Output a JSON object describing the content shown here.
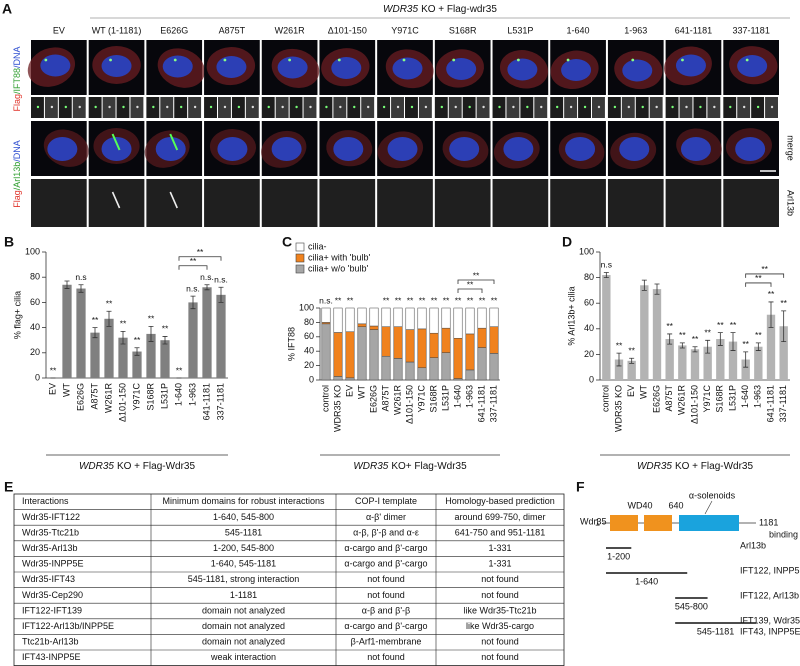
{
  "panel_a": {
    "label": "A",
    "title_gene": "WDR35",
    "title_rest": "KO + Flag-wdr35",
    "columns": [
      "EV",
      "WT (1-1181)",
      "E626G",
      "A875T",
      "W261R",
      "Δ101-150",
      "Y971C",
      "S168R",
      "L531P",
      "1-640",
      "1-963",
      "641-1181",
      "337-1181"
    ],
    "row_labels": [
      [
        "Flag",
        "/IFT88",
        "/DNA"
      ],
      [
        "Flag",
        "/Arl13b",
        "/DNA"
      ]
    ],
    "row_label_colors": [
      "#e0332a",
      "#2f9e2f",
      "#3050d0"
    ],
    "right_labels": [
      "merge",
      "Arl13b"
    ]
  },
  "chart_data": [
    {
      "type": "bar",
      "panel": "B",
      "ylabel": "% flag+ cilia",
      "xlabel_gene": "WDR35",
      "xlabel_rest": "KO + Flag-Wdr35",
      "categories": [
        "EV",
        "WT",
        "E626G",
        "A875T",
        "W261R",
        "Δ101-150",
        "Y971C",
        "S168R",
        "L531P",
        "1-640",
        "1-963",
        "641-1181",
        "337-1181"
      ],
      "values": [
        0,
        74,
        71,
        36,
        47,
        32,
        21,
        35,
        30,
        0,
        60,
        72,
        66
      ],
      "errors": [
        0,
        3,
        3,
        4,
        6,
        5,
        3,
        6,
        3,
        0,
        5,
        2,
        6
      ],
      "annotations": [
        "**",
        null,
        "n.s",
        "**",
        "**",
        "**",
        "**",
        "**",
        "**",
        "**",
        "n.s.",
        "n.s.",
        "n.s."
      ],
      "brackets": [
        {
          "between": [
            "1-640",
            "641-1181"
          ],
          "label": "**"
        },
        {
          "between": [
            "1-640",
            "337-1181"
          ],
          "label": "**"
        }
      ],
      "color": "#808080",
      "ylim": [
        0,
        100
      ],
      "yticks": [
        0,
        20,
        40,
        60,
        80,
        100
      ]
    },
    {
      "type": "stacked_bar",
      "panel": "C",
      "ylabel": "% IFT88",
      "xlabel_gene": "WDR35",
      "xlabel_rest": "KO+ Flag-Wdr35",
      "categories": [
        "control",
        "WDR35 KO",
        "EV",
        "WT",
        "E626G",
        "A875T",
        "W261R",
        "Δ101-150",
        "Y971C",
        "S168R",
        "L531P",
        "1-640",
        "1-963",
        "641-1181",
        "337-1181"
      ],
      "series": [
        {
          "name": "cilia+ w/o 'bulb'",
          "color": "#a6a6a6",
          "values": [
            78,
            5,
            3,
            74,
            70,
            33,
            30,
            25,
            17,
            31,
            38,
            2,
            14,
            45,
            37
          ]
        },
        {
          "name": "cilia+ with 'bulb'",
          "color": "#f0821e",
          "values": [
            2,
            61,
            64,
            4,
            5,
            41,
            44,
            45,
            54,
            34,
            34,
            56,
            50,
            27,
            37
          ]
        },
        {
          "name": "cilia-",
          "color": "#ffffff",
          "values": [
            20,
            34,
            33,
            22,
            25,
            26,
            26,
            30,
            29,
            35,
            28,
            42,
            36,
            28,
            26
          ]
        }
      ],
      "annotations": [
        "n.s.",
        "**",
        "**",
        null,
        null,
        "**",
        "**",
        "**",
        "**",
        "**",
        "**",
        "**",
        "**",
        "**",
        "**"
      ],
      "brackets": [
        {
          "between": [
            "1-640",
            "641-1181"
          ],
          "label": "**"
        },
        {
          "between": [
            "1-640",
            "337-1181"
          ],
          "label": "**"
        }
      ],
      "legend": "top-left",
      "ylim": [
        0,
        100
      ],
      "yticks": [
        0,
        20,
        40,
        60,
        80,
        100
      ]
    },
    {
      "type": "bar",
      "panel": "D",
      "ylabel": "% Arl13b+ cilia",
      "xlabel_gene": "WDR35",
      "xlabel_rest": "KO + Flag-Wdr35",
      "categories": [
        "control",
        "WDR35 KO",
        "EV",
        "WT",
        "E626G",
        "A875T",
        "W261R",
        "Δ101-150",
        "Y971C",
        "S168R",
        "L531P",
        "1-640",
        "1-963",
        "641-1181",
        "337-1181"
      ],
      "values": [
        82,
        16,
        15,
        74,
        71,
        32,
        27,
        24,
        26,
        32,
        30,
        16,
        26,
        51,
        42
      ],
      "errors": [
        2,
        5,
        2,
        4,
        4,
        4,
        2,
        2,
        5,
        5,
        7,
        6,
        3,
        10,
        12
      ],
      "annotations": [
        "n.s",
        "**",
        "**",
        null,
        null,
        "**",
        "**",
        "**",
        "**",
        "**",
        "**",
        "**",
        "**",
        "**",
        "**"
      ],
      "brackets": [
        {
          "between": [
            "1-640",
            "641-1181"
          ],
          "label": "**"
        },
        {
          "between": [
            "1-640",
            "337-1181"
          ],
          "label": "**"
        }
      ],
      "color": "#b3b3b3",
      "ylim": [
        0,
        100
      ],
      "yticks": [
        0,
        20,
        40,
        60,
        80,
        100
      ]
    }
  ],
  "table": {
    "label": "E",
    "header": [
      "Interactions",
      "Minimum domains for robust interactions",
      "COP-I template",
      "Homology-based prediction"
    ],
    "rows": [
      [
        "Wdr35-IFT122",
        "1-640, 545-800",
        "α-β' dimer",
        "around 699-750, dimer"
      ],
      [
        "Wdr35-Ttc21b",
        "545-1181",
        "α-β, β'-β and α-ε",
        "641-750 and 951-1181"
      ],
      [
        "Wdr35-Arl13b",
        "1-200, 545-800",
        "α-cargo and β'-cargo",
        "1-331"
      ],
      [
        "Wdr35-INPP5E",
        "1-640, 545-1181",
        "α-cargo and β'-cargo",
        "1-331"
      ],
      [
        "Wdr35-IFT43",
        "545-1181, strong interaction",
        "not found",
        "not found"
      ],
      [
        "Wdr35-Cep290",
        "1-1181",
        "not found",
        "not found"
      ],
      [
        "IFT122-IFT139",
        "domain not analyzed",
        "α-β and β'-β",
        "like Wdr35-Ttc21b"
      ],
      [
        "IFT122-Arl13b/INPP5E",
        "domain not analyzed",
        "α-cargo and β'-cargo",
        "like Wdr35-cargo"
      ],
      [
        "Ttc21b-Arl13b",
        "domain not analyzed",
        "β-Arf1-membrane",
        "not found"
      ],
      [
        "IFT43-INPP5E",
        "weak interaction",
        "not found",
        "not found"
      ]
    ]
  },
  "diagram": {
    "label": "F",
    "protein": "Wdr35",
    "start": "1",
    "end": "1181",
    "domain_labels": [
      "WD40",
      "640",
      "α-solenoids"
    ],
    "column_header": "binding",
    "fragments": [
      {
        "range": "1-200",
        "binding": [
          "Arl13b"
        ]
      },
      {
        "range": "1-640",
        "binding": [
          "IFT122, INPP5E"
        ]
      },
      {
        "range": "545-800",
        "binding": [
          "IFT122, Arl13b"
        ]
      },
      {
        "range": "545-1181",
        "binding": [
          "IFT139, Wdr35,",
          "IFT43, INPP5E"
        ]
      }
    ]
  }
}
